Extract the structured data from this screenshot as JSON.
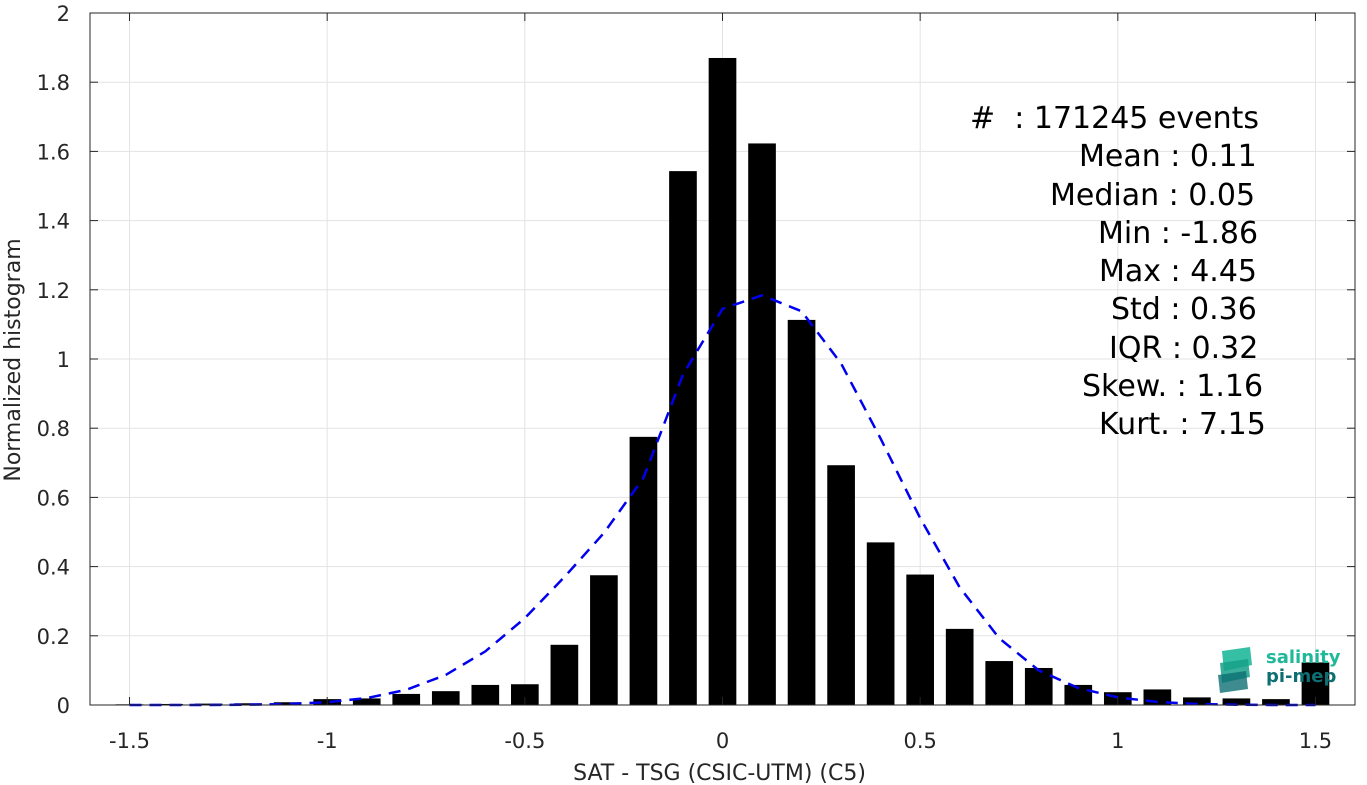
{
  "chart_data": {
    "type": "bar",
    "xlabel": "SAT - TSG (CSIC-UTM) (C5)",
    "ylabel": "Normalized histogram",
    "xlim": [
      -1.6,
      1.6
    ],
    "ylim": [
      0,
      2
    ],
    "xticks": [
      -1.5,
      -1,
      -0.5,
      0,
      0.5,
      1,
      1.5
    ],
    "xtick_labels": [
      "-1.5",
      "-1",
      "-0.5",
      "0",
      "0.5",
      "1",
      "1.5"
    ],
    "yticks": [
      0,
      0.2,
      0.4,
      0.6,
      0.8,
      1,
      1.2,
      1.4,
      1.6,
      1.8,
      2
    ],
    "ytick_labels": [
      "0",
      "0.2",
      "0.4",
      "0.6",
      "0.8",
      "1",
      "1.2",
      "1.4",
      "1.6",
      "1.8",
      "2"
    ],
    "grid": true,
    "bar_color": "#000000",
    "bar_width": 0.07,
    "bars": {
      "x": [
        -1.5,
        -1.4,
        -1.3,
        -1.2,
        -1.1,
        -1.0,
        -0.9,
        -0.8,
        -0.7,
        -0.6,
        -0.5,
        -0.4,
        -0.3,
        -0.2,
        -0.1,
        0.0,
        0.1,
        0.2,
        0.3,
        0.4,
        0.5,
        0.6,
        0.7,
        0.8,
        0.9,
        1.0,
        1.1,
        1.2,
        1.3,
        1.4,
        1.5
      ],
      "values": [
        0.002,
        0.003,
        0.004,
        0.005,
        0.008,
        0.017,
        0.019,
        0.032,
        0.04,
        0.058,
        0.06,
        0.174,
        0.375,
        0.775,
        1.543,
        1.87,
        1.623,
        1.113,
        0.693,
        0.47,
        0.377,
        0.22,
        0.127,
        0.107,
        0.058,
        0.037,
        0.045,
        0.022,
        0.019,
        0.017,
        0.123
      ]
    },
    "fit_curve": {
      "style": "dashed",
      "color": "#0000ee",
      "x": [
        -1.5,
        -1.4,
        -1.3,
        -1.2,
        -1.1,
        -1.0,
        -0.9,
        -0.8,
        -0.7,
        -0.6,
        -0.5,
        -0.4,
        -0.3,
        -0.2,
        -0.1,
        0.0,
        0.1,
        0.2,
        0.3,
        0.4,
        0.5,
        0.6,
        0.7,
        0.8,
        0.9,
        1.0,
        1.1,
        1.2,
        1.3,
        1.4,
        1.5
      ],
      "y": [
        0.0,
        0.0,
        0.0,
        0.001,
        0.003,
        0.008,
        0.02,
        0.044,
        0.087,
        0.155,
        0.251,
        0.37,
        0.497,
        0.656,
        0.955,
        1.145,
        1.184,
        1.138,
        0.987,
        0.77,
        0.54,
        0.34,
        0.193,
        0.1,
        0.049,
        0.022,
        0.009,
        0.003,
        0.001,
        0.0,
        0.0
      ]
    }
  },
  "stats": {
    "events": "#  : 171245 events",
    "mean": "Mean : 0.11",
    "median": "Median : 0.05",
    "min": "Min : -1.86",
    "max": "Max : 4.45",
    "std": "Std : 0.36",
    "iqr": "IQR : 0.32",
    "skew": "Skew. : 1.16",
    "kurt": "Kurt. : 7.15"
  },
  "logo": {
    "line1": "salinity",
    "line2": "pi-mep",
    "color1": "#1fb89a",
    "color2": "#0e6f73"
  }
}
